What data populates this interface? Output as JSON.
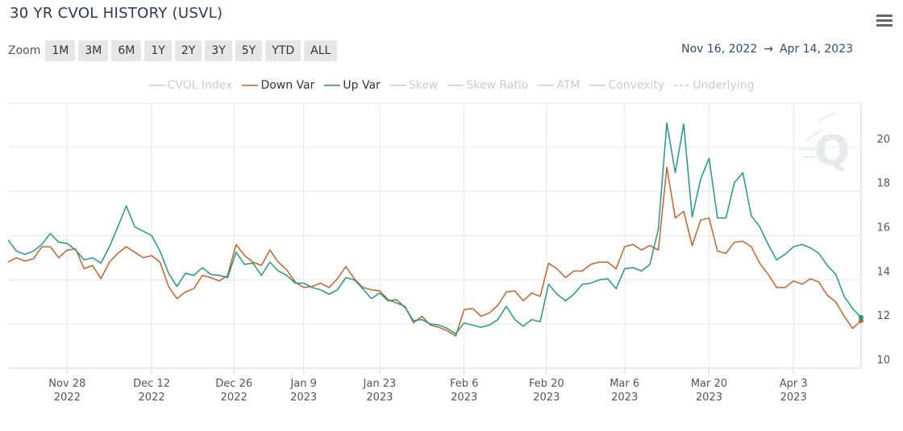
{
  "chart_data": {
    "type": "line",
    "title": "30 YR CVOL HISTORY (USVL)",
    "zoom_label": "Zoom",
    "zoom_buttons": [
      "1M",
      "3M",
      "6M",
      "1Y",
      "2Y",
      "3Y",
      "5Y",
      "YTD",
      "ALL"
    ],
    "range_start": "Nov 16, 2022",
    "range_separator": "→",
    "range_end": "Apr 14, 2023",
    "x": [
      "2022-11-16",
      "2022-11-17",
      "2022-11-18",
      "2022-11-21",
      "2022-11-22",
      "2022-11-23",
      "2022-11-25",
      "2022-11-28",
      "2022-11-29",
      "2022-11-30",
      "2022-12-01",
      "2022-12-02",
      "2022-12-05",
      "2022-12-06",
      "2022-12-07",
      "2022-12-08",
      "2022-12-09",
      "2022-12-12",
      "2022-12-13",
      "2022-12-14",
      "2022-12-15",
      "2022-12-16",
      "2022-12-19",
      "2022-12-20",
      "2022-12-21",
      "2022-12-22",
      "2022-12-23",
      "2022-12-27",
      "2022-12-28",
      "2022-12-29",
      "2022-12-30",
      "2023-01-03",
      "2023-01-04",
      "2023-01-05",
      "2023-01-06",
      "2023-01-09",
      "2023-01-10",
      "2023-01-11",
      "2023-01-12",
      "2023-01-13",
      "2023-01-17",
      "2023-01-18",
      "2023-01-19",
      "2023-01-20",
      "2023-01-23",
      "2023-01-24",
      "2023-01-25",
      "2023-01-26",
      "2023-01-27",
      "2023-01-30",
      "2023-01-31",
      "2023-02-01",
      "2023-02-02",
      "2023-02-03",
      "2023-02-06",
      "2023-02-07",
      "2023-02-08",
      "2023-02-09",
      "2023-02-10",
      "2023-02-13",
      "2023-02-14",
      "2023-02-15",
      "2023-02-16",
      "2023-02-17",
      "2023-02-21",
      "2023-02-22",
      "2023-02-23",
      "2023-02-24",
      "2023-02-27",
      "2023-02-28",
      "2023-03-01",
      "2023-03-02",
      "2023-03-03",
      "2023-03-06",
      "2023-03-07",
      "2023-03-08",
      "2023-03-09",
      "2023-03-10",
      "2023-03-13",
      "2023-03-14",
      "2023-03-15",
      "2023-03-16",
      "2023-03-17",
      "2023-03-20",
      "2023-03-21",
      "2023-03-22",
      "2023-03-23",
      "2023-03-24",
      "2023-03-27",
      "2023-03-28",
      "2023-03-29",
      "2023-03-30",
      "2023-03-31",
      "2023-04-03",
      "2023-04-04",
      "2023-04-05",
      "2023-04-06",
      "2023-04-10",
      "2023-04-11",
      "2023-04-12",
      "2023-04-13",
      "2023-04-14"
    ],
    "series": [
      {
        "name": "CVOL Index",
        "color": "#cccccc",
        "visible": false
      },
      {
        "name": "Down Var",
        "color": "#c8602a",
        "visible": true,
        "values": [
          14.8,
          15.0,
          14.85,
          14.95,
          15.5,
          15.5,
          15.0,
          15.35,
          15.4,
          14.5,
          14.65,
          14.05,
          14.8,
          15.2,
          15.5,
          15.25,
          15.0,
          15.1,
          14.8,
          13.7,
          13.15,
          13.45,
          13.6,
          14.2,
          14.1,
          13.95,
          14.2,
          15.6,
          15.1,
          14.8,
          14.65,
          15.35,
          14.8,
          14.45,
          13.9,
          13.65,
          13.7,
          13.85,
          13.65,
          14.05,
          14.6,
          14.05,
          13.65,
          13.55,
          13.5,
          13.1,
          12.95,
          12.8,
          12.05,
          12.35,
          11.95,
          11.85,
          11.7,
          11.45,
          12.65,
          12.7,
          12.35,
          12.5,
          12.85,
          13.45,
          13.5,
          13.05,
          13.4,
          13.25,
          14.75,
          14.5,
          14.1,
          14.4,
          14.4,
          14.7,
          14.8,
          14.8,
          14.5,
          15.5,
          15.6,
          15.35,
          15.55,
          15.35,
          19.1,
          16.8,
          17.1,
          15.55,
          16.7,
          16.8,
          15.3,
          15.2,
          15.7,
          15.75,
          15.5,
          14.75,
          14.25,
          13.65,
          13.65,
          13.95,
          13.8,
          14.05,
          13.9,
          13.3,
          13.0,
          12.35,
          11.8,
          12.15
        ]
      },
      {
        "name": "Up Var",
        "color": "#1f9a84",
        "visible": true,
        "values": [
          15.8,
          15.3,
          15.15,
          15.3,
          15.6,
          16.1,
          15.7,
          15.65,
          15.35,
          14.9,
          15.0,
          14.75,
          15.5,
          16.4,
          17.35,
          16.4,
          16.2,
          16.0,
          15.3,
          14.3,
          13.7,
          14.3,
          14.2,
          14.55,
          14.25,
          14.2,
          14.1,
          15.25,
          14.7,
          14.75,
          14.2,
          14.8,
          14.4,
          14.2,
          13.85,
          13.85,
          13.65,
          13.55,
          13.35,
          13.55,
          14.1,
          14.0,
          13.6,
          13.15,
          13.4,
          13.05,
          13.1,
          12.75,
          12.15,
          12.2,
          12.0,
          11.95,
          11.8,
          11.55,
          12.05,
          11.95,
          11.85,
          11.95,
          12.2,
          12.8,
          12.2,
          11.9,
          12.2,
          12.1,
          13.8,
          13.35,
          13.05,
          13.35,
          13.8,
          13.85,
          14.0,
          14.05,
          13.6,
          14.5,
          14.55,
          14.4,
          14.7,
          16.3,
          21.1,
          18.85,
          21.05,
          16.85,
          18.55,
          19.5,
          16.8,
          16.8,
          18.4,
          18.85,
          16.9,
          16.4,
          15.6,
          14.9,
          15.15,
          15.5,
          15.6,
          15.45,
          15.2,
          14.65,
          14.25,
          13.25,
          12.7,
          12.3
        ]
      },
      {
        "name": "Skew",
        "color": "#cccccc",
        "visible": false
      },
      {
        "name": "Skew Ratio",
        "color": "#cccccc",
        "visible": false
      },
      {
        "name": "ATM",
        "color": "#cccccc",
        "visible": false
      },
      {
        "name": "Convexity",
        "color": "#cccccc",
        "visible": false
      },
      {
        "name": "Underlying",
        "color": "#cccccc",
        "visible": false,
        "dash": true
      }
    ],
    "xticks": [
      {
        "value": "2022-11-28",
        "label": [
          "Nov 28",
          "2022"
        ]
      },
      {
        "value": "2022-12-12",
        "label": [
          "Dec 12",
          "2022"
        ]
      },
      {
        "value": "2022-12-26",
        "label": [
          "Dec 26",
          "2022"
        ]
      },
      {
        "value": "2023-01-09",
        "label": [
          "Jan 9",
          "2023"
        ]
      },
      {
        "value": "2023-01-23",
        "label": [
          "Jan 23",
          "2023"
        ]
      },
      {
        "value": "2023-02-06",
        "label": [
          "Feb 6",
          "2023"
        ]
      },
      {
        "value": "2023-02-20",
        "label": [
          "Feb 20",
          "2023"
        ]
      },
      {
        "value": "2023-03-06",
        "label": [
          "Mar 6",
          "2023"
        ]
      },
      {
        "value": "2023-03-20",
        "label": [
          "Mar 20",
          "2023"
        ]
      },
      {
        "value": "2023-04-03",
        "label": [
          "Apr 3",
          "2023"
        ]
      }
    ],
    "ylim": [
      10,
      22
    ],
    "yticks": [
      10,
      12,
      14,
      16,
      18,
      20
    ],
    "grid": true
  }
}
